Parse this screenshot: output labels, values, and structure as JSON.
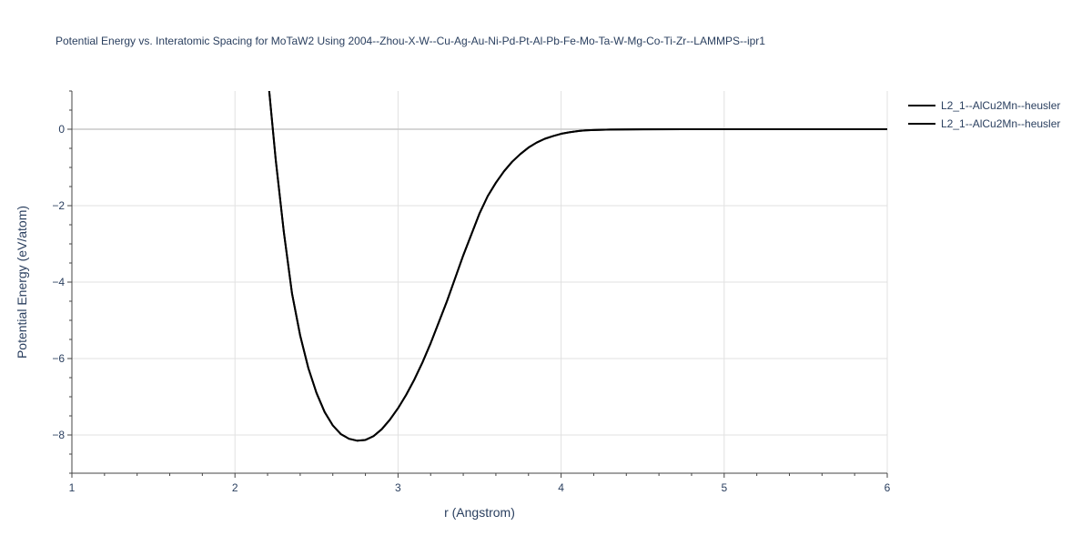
{
  "chart_data": {
    "type": "line",
    "title": "Potential Energy vs. Interatomic Spacing for MoTaW2 Using 2004--Zhou-X-W--Cu-Ag-Au-Ni-Pd-Pt-Al-Pb-Fe-Mo-Ta-W-Mg-Co-Ti-Zr--LAMMPS--ipr1",
    "xlabel": "r (Angstrom)",
    "ylabel": "Potential Energy (eV/atom)",
    "xlim": [
      1,
      6
    ],
    "ylim": [
      -9,
      1
    ],
    "xticks": [
      1,
      2,
      3,
      4,
      5,
      6
    ],
    "xtick_labels": [
      "1",
      "2",
      "3",
      "4",
      "5",
      "6"
    ],
    "yticks": [
      -8,
      -6,
      -4,
      -2,
      0
    ],
    "ytick_labels": [
      "−8",
      "−6",
      "−4",
      "−2",
      "0"
    ],
    "grid": true,
    "legend_position": "top-right",
    "series": [
      {
        "name": "L2_1--AlCu2Mn--heusler",
        "color": "#000000",
        "x": [
          2.21,
          2.25,
          2.3,
          2.35,
          2.4,
          2.45,
          2.5,
          2.55,
          2.6,
          2.65,
          2.7,
          2.75,
          2.8,
          2.85,
          2.9,
          2.95,
          3.0,
          3.05,
          3.1,
          3.15,
          3.2,
          3.25,
          3.3,
          3.35,
          3.4,
          3.45,
          3.5,
          3.55,
          3.6,
          3.65,
          3.7,
          3.75,
          3.8,
          3.85,
          3.9,
          3.95,
          4.0,
          4.05,
          4.1,
          4.15,
          4.2,
          4.3,
          4.4,
          4.5,
          4.75,
          5.0,
          5.5,
          6.0
        ],
        "y": [
          1.0,
          -0.8,
          -2.7,
          -4.3,
          -5.4,
          -6.25,
          -6.9,
          -7.4,
          -7.75,
          -7.98,
          -8.1,
          -8.15,
          -8.13,
          -8.03,
          -7.85,
          -7.6,
          -7.3,
          -6.95,
          -6.55,
          -6.1,
          -5.6,
          -5.05,
          -4.5,
          -3.9,
          -3.3,
          -2.75,
          -2.2,
          -1.75,
          -1.4,
          -1.1,
          -0.85,
          -0.65,
          -0.48,
          -0.35,
          -0.25,
          -0.18,
          -0.12,
          -0.08,
          -0.05,
          -0.03,
          -0.02,
          -0.01,
          -0.005,
          -0.002,
          -0.001,
          0.0,
          0.0,
          0.0
        ]
      },
      {
        "name": "L2_1--AlCu2Mn--heusler",
        "color": "#000000",
        "x": [
          2.21,
          2.25,
          2.3,
          2.35,
          2.4,
          2.45,
          2.5,
          2.55,
          2.6,
          2.65,
          2.7,
          2.75,
          2.8,
          2.85,
          2.9,
          2.95,
          3.0,
          3.05,
          3.1,
          3.15,
          3.2,
          3.25,
          3.3,
          3.35,
          3.4,
          3.45,
          3.5,
          3.55,
          3.6,
          3.65,
          3.7,
          3.75,
          3.8,
          3.85,
          3.9,
          3.95,
          4.0,
          4.05,
          4.1,
          4.15,
          4.2,
          4.3,
          4.4,
          4.5,
          4.75,
          5.0,
          5.5,
          6.0
        ],
        "y": [
          1.0,
          -0.8,
          -2.7,
          -4.3,
          -5.4,
          -6.25,
          -6.9,
          -7.4,
          -7.75,
          -7.98,
          -8.1,
          -8.15,
          -8.13,
          -8.03,
          -7.85,
          -7.6,
          -7.3,
          -6.95,
          -6.55,
          -6.1,
          -5.6,
          -5.05,
          -4.5,
          -3.9,
          -3.3,
          -2.75,
          -2.2,
          -1.75,
          -1.4,
          -1.1,
          -0.85,
          -0.65,
          -0.48,
          -0.35,
          -0.25,
          -0.18,
          -0.12,
          -0.08,
          -0.05,
          -0.03,
          -0.02,
          -0.01,
          -0.005,
          -0.002,
          -0.001,
          0.0,
          0.0,
          0.0
        ]
      }
    ]
  }
}
